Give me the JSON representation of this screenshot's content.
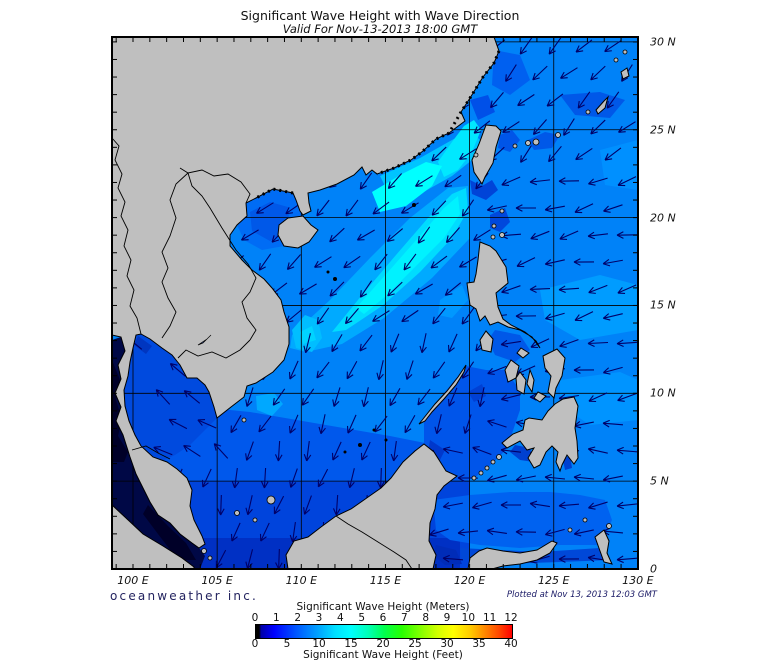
{
  "title": "Significant Wave Height with Wave Direction",
  "subtitle": "Valid For Nov-13-2013 18:00 GMT",
  "credit": "oceanweather inc.",
  "plotted": "Plotted at Nov 13, 2013 12:03 GMT",
  "map": {
    "lon_labels": [
      "100 E",
      "105 E",
      "110 E",
      "115 E",
      "120 E",
      "125 E",
      "130 E"
    ],
    "lat_labels": [
      "30 N",
      "25 N",
      "20 N",
      "15 N",
      "10 N",
      "5 N",
      "0"
    ],
    "extent": {
      "lon_min": 98.75,
      "lon_max": 130,
      "lat_min": 0,
      "lat_max": 30.3
    },
    "grid_interval_deg": 5,
    "tick_interval_deg": 1,
    "land_color": "#bfbfbf",
    "ocean_base_color": "#0082f8",
    "arrow_color": "#000068",
    "wave_field": [
      {
        "region": "gulf-of-thailand",
        "lon": [
          98.75,
          105.5
        ],
        "lat": [
          6,
          13.8
        ],
        "angle": 215
      },
      {
        "region": "far-north-east-china-sea",
        "lon": [
          98.75,
          130
        ],
        "lat": [
          22.5,
          30.3
        ],
        "angle": 135
      },
      {
        "region": "north-south-china-sea",
        "lon": [
          105.5,
          121.5
        ],
        "lat": [
          14,
          22.5
        ],
        "angle": 137
      },
      {
        "region": "philippine-sea",
        "lon": [
          121.5,
          130
        ],
        "lat": [
          9.5,
          22.5
        ],
        "angle": 167
      },
      {
        "region": "central-south-china-sea",
        "lon": [
          105.5,
          121.5
        ],
        "lat": [
          8,
          14
        ],
        "angle": 115
      },
      {
        "region": "sulu-sea",
        "lon": [
          117,
          123
        ],
        "lat": [
          5.5,
          9.5
        ],
        "angle": 188
      },
      {
        "region": "east-of-mindanao",
        "lon": [
          123,
          130
        ],
        "lat": [
          5.5,
          9.5
        ],
        "angle": 180
      },
      {
        "region": "south-south-china-sea",
        "lon": [
          98.75,
          117
        ],
        "lat": [
          0,
          8
        ],
        "angle": 105
      },
      {
        "region": "celebes-sea",
        "lon": [
          117,
          130
        ],
        "lat": [
          0,
          5.5
        ],
        "angle": 176
      }
    ]
  },
  "legend": {
    "meters_label": "Significant Wave Height (Meters)",
    "feet_label": "Significant Wave Height (Feet)",
    "meters_ticks": [
      "0",
      "1",
      "2",
      "3",
      "4",
      "5",
      "6",
      "7",
      "8",
      "9",
      "10",
      "11",
      "12"
    ],
    "feet_ticks": [
      "0",
      "5",
      "10",
      "15",
      "20",
      "25",
      "30",
      "35",
      "40"
    ],
    "gradient_stops": [
      [
        "#000000",
        "0%"
      ],
      [
        "#000000",
        "1.2%"
      ],
      [
        "#0000a8",
        "2%"
      ],
      [
        "#0000ff",
        "7%"
      ],
      [
        "#0050ff",
        "15%"
      ],
      [
        "#00a0ff",
        "24%"
      ],
      [
        "#00e0ff",
        "31%"
      ],
      [
        "#00ffff",
        "37%"
      ],
      [
        "#00ffb4",
        "44%"
      ],
      [
        "#00ff50",
        "50%"
      ],
      [
        "#28ff00",
        "57%"
      ],
      [
        "#8cff00",
        "65%"
      ],
      [
        "#d2ff00",
        "71%"
      ],
      [
        "#ffff00",
        "77%"
      ],
      [
        "#ffc800",
        "84%"
      ],
      [
        "#ff8c00",
        "89%"
      ],
      [
        "#ff4600",
        "95%"
      ],
      [
        "#ff0000",
        "100%"
      ]
    ]
  },
  "chart_data": {
    "type": "heatmap",
    "title": "Significant Wave Height with Wave Direction",
    "subtitle": "Valid For Nov-13-2013 18:00 GMT",
    "x_axis": {
      "label_suffix": "E",
      "ticks": [
        100,
        105,
        110,
        115,
        120,
        125,
        130
      ]
    },
    "y_axis": {
      "label_suffix": "N",
      "ticks": [
        0,
        5,
        10,
        15,
        20,
        25,
        30
      ]
    },
    "colorbar": {
      "top_scale": {
        "label": "Significant Wave Height (Meters)",
        "min": 0,
        "max": 12,
        "tick_step": 1
      },
      "bottom_scale": {
        "label": "Significant Wave Height (Feet)",
        "min": 0,
        "max": 40,
        "tick_step": 5
      }
    },
    "qualitative_field": [
      {
        "area": "northern South China Sea 113-119E 17-22N",
        "height_m": "2.5-3.5 (cyan maximum)"
      },
      {
        "area": "Taiwan Strait and SE China coast",
        "height_m": "2.5-3"
      },
      {
        "area": "Philippine Sea east of Luzon/Taiwan",
        "height_m": "1.5-2.5"
      },
      {
        "area": "central South China Sea",
        "height_m": "1.5-2.5"
      },
      {
        "area": "Gulf of Thailand",
        "height_m": "1-1.5"
      },
      {
        "area": "southern South China Sea / Java Sea",
        "height_m": "0.5-1.5"
      },
      {
        "area": "Sulu and Celebes Seas",
        "height_m": "1-2"
      },
      {
        "area": "Strait of Malacca / Andaman edge",
        "height_m": "0-0.5 (near zero, darkest)"
      }
    ],
    "wave_direction_summary": "Arrows point SW over the East China Sea and northern South China Sea, W over the Philippine Sea and Celebes Sea, SSW-S over the central and southern South China Sea, and NW inside the Gulf of Thailand"
  }
}
